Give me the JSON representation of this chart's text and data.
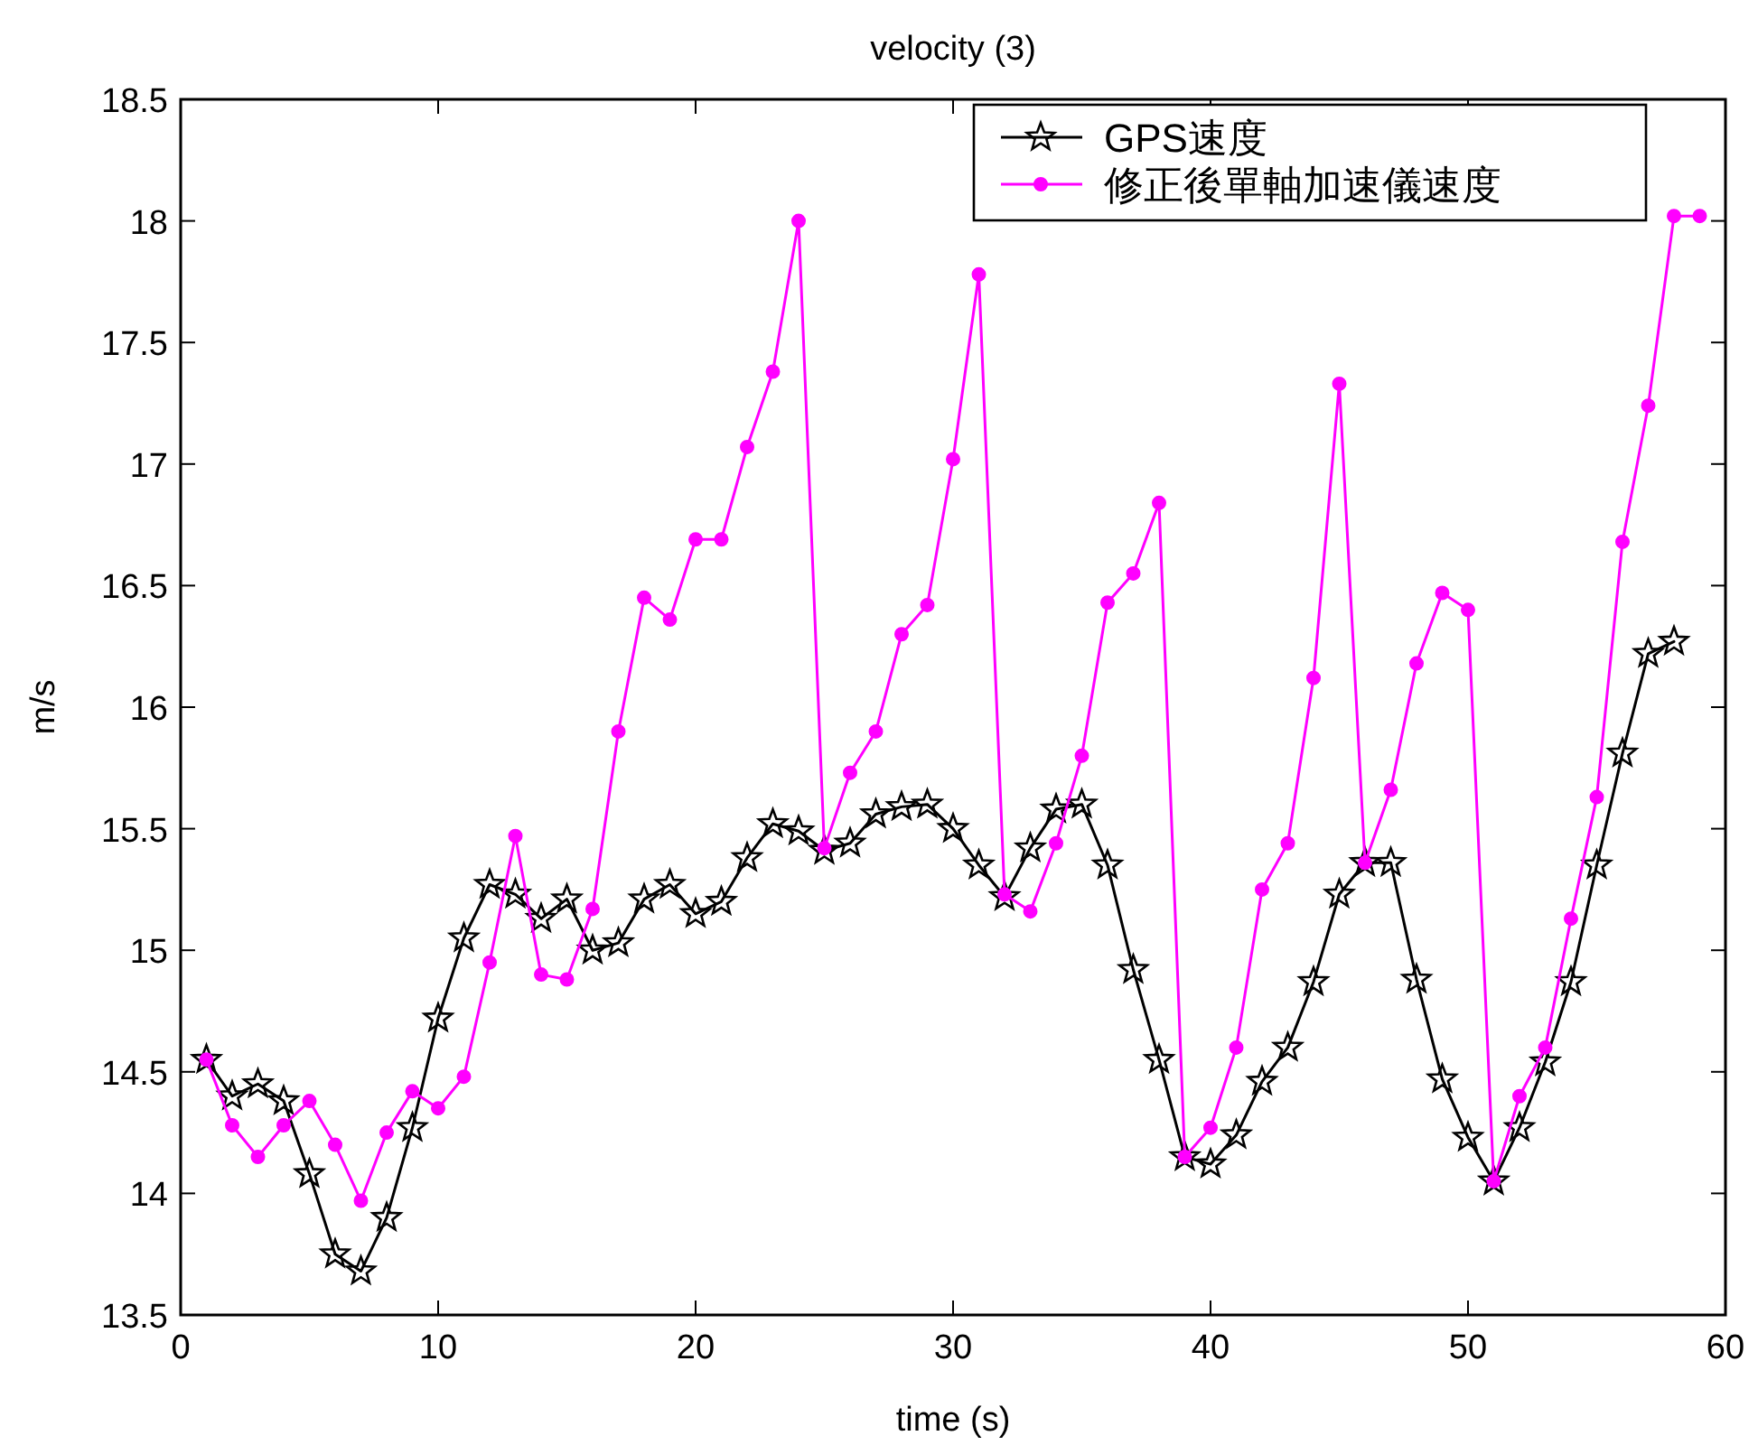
{
  "chart_data": {
    "type": "line",
    "title": "velocity (3)",
    "xlabel": "time (s)",
    "ylabel": "m/s",
    "xlim": [
      0,
      60
    ],
    "xticks": [
      0,
      10,
      20,
      30,
      40,
      50,
      60
    ],
    "ylim": [
      13.5,
      18.5
    ],
    "yticks": [
      13.5,
      14,
      14.5,
      15,
      15.5,
      16,
      16.5,
      17,
      17.5,
      18,
      18.5
    ],
    "grid": false,
    "legend": "top right",
    "series": [
      {
        "name": "GPS速度",
        "color": "#000000",
        "marker": "star",
        "x": [
          1,
          2,
          3,
          4,
          5,
          6,
          7,
          8,
          9,
          10,
          11,
          12,
          13,
          14,
          15,
          16,
          17,
          18,
          19,
          20,
          21,
          22,
          23,
          24,
          25,
          26,
          27,
          28,
          29,
          30,
          31,
          32,
          33,
          34,
          35,
          36,
          37,
          38,
          39,
          40,
          41,
          42,
          43,
          44,
          45,
          46,
          47,
          48,
          49,
          50,
          51,
          52,
          53,
          54,
          55,
          56,
          57,
          58
        ],
        "values": [
          14.55,
          14.4,
          14.45,
          14.38,
          14.08,
          13.75,
          13.68,
          13.9,
          14.27,
          14.72,
          15.05,
          15.27,
          15.23,
          15.13,
          15.21,
          15.0,
          15.03,
          15.21,
          15.27,
          15.15,
          15.2,
          15.38,
          15.52,
          15.49,
          15.41,
          15.44,
          15.56,
          15.59,
          15.6,
          15.5,
          15.35,
          15.22,
          15.42,
          15.58,
          15.6,
          15.35,
          14.92,
          14.55,
          14.15,
          14.12,
          14.24,
          14.46,
          14.6,
          14.87,
          15.23,
          15.36,
          15.36,
          14.88,
          14.47,
          14.23,
          14.05,
          14.27,
          14.54,
          14.87,
          15.35,
          15.81,
          16.22,
          16.27
        ]
      },
      {
        "name": "修正後單軸加速儀速度",
        "color": "#ff00ff",
        "marker": "circle",
        "x": [
          1,
          2,
          3,
          4,
          5,
          6,
          7,
          8,
          9,
          10,
          11,
          12,
          13,
          14,
          15,
          16,
          17,
          18,
          19,
          20,
          21,
          22,
          23,
          24,
          25,
          26,
          27,
          28,
          29,
          30,
          31,
          32,
          33,
          34,
          35,
          36,
          37,
          38,
          39,
          40,
          41,
          42,
          43,
          44,
          45,
          46,
          47,
          48,
          49,
          50,
          51,
          52,
          53,
          54,
          55,
          56,
          57,
          58,
          59
        ],
        "values": [
          14.55,
          14.28,
          14.15,
          14.28,
          14.38,
          14.2,
          13.97,
          14.25,
          14.42,
          14.35,
          14.48,
          14.95,
          15.47,
          14.9,
          14.88,
          15.17,
          15.9,
          16.45,
          16.36,
          16.69,
          16.69,
          17.07,
          17.38,
          18.0,
          15.42,
          15.73,
          15.9,
          16.3,
          16.42,
          17.02,
          17.78,
          15.23,
          15.16,
          15.44,
          15.8,
          16.43,
          16.55,
          16.84,
          14.15,
          14.27,
          14.6,
          15.25,
          15.44,
          16.12,
          17.33,
          15.36,
          15.66,
          16.18,
          16.47,
          16.4,
          14.05,
          14.4,
          14.6,
          15.13,
          15.63,
          16.68,
          17.24,
          18.02,
          18.02
        ]
      }
    ]
  }
}
